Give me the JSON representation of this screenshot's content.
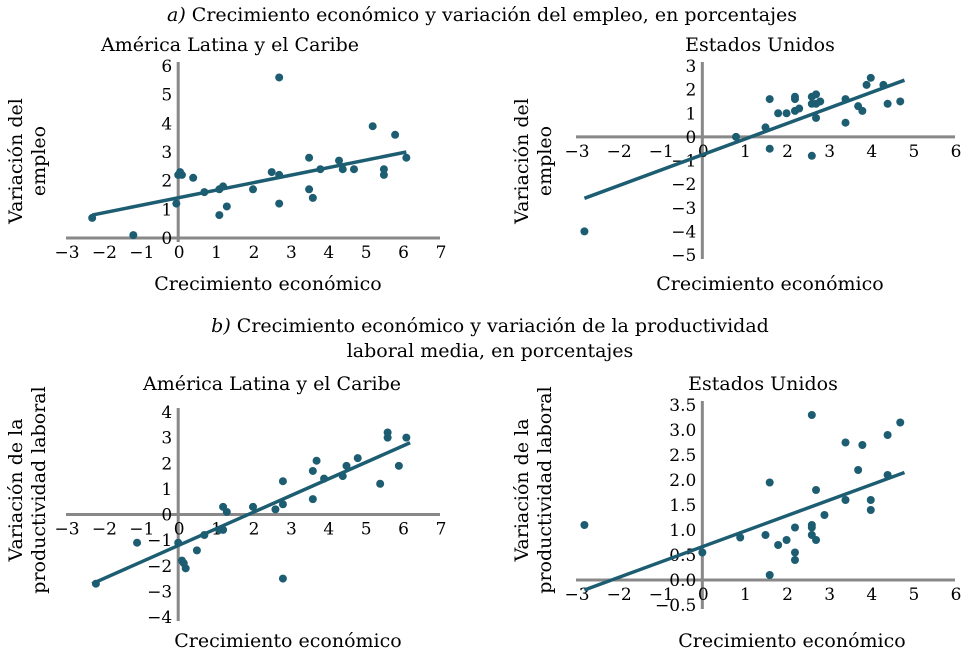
{
  "section_a": {
    "letter": "a)",
    "title": "Crecimiento económico y variación del empleo, en porcentajes"
  },
  "section_b": {
    "letter": "b)",
    "title_line1": "Crecimiento económico y variación de la productividad",
    "title_line2": "laboral media, en porcentajes"
  },
  "colors": {
    "points": "#1d5d72",
    "axes": "#888888"
  },
  "chart_data": [
    {
      "id": "a-lac",
      "type": "scatter",
      "title": "América Latina y el Caribe",
      "xlabel": "Crecimiento económico",
      "ylabel_lines": [
        "Variación del",
        "empleo"
      ],
      "xlim": [
        -3,
        7
      ],
      "ylim": [
        0,
        6
      ],
      "xticks": [
        -3,
        -2,
        -1,
        0,
        1,
        2,
        3,
        4,
        5,
        6,
        7
      ],
      "yticks": [
        0,
        1,
        2,
        3,
        4,
        5,
        6
      ],
      "trend": {
        "x1": -2.3,
        "y1": 0.8,
        "x2": 6.1,
        "y2": 3.0
      },
      "points": [
        [
          -2.3,
          0.7
        ],
        [
          -1.2,
          0.1
        ],
        [
          -0.05,
          1.2
        ],
        [
          0.0,
          2.2
        ],
        [
          0.05,
          2.3
        ],
        [
          0.1,
          2.2
        ],
        [
          0.4,
          2.1
        ],
        [
          0.7,
          1.6
        ],
        [
          1.1,
          1.7
        ],
        [
          1.2,
          1.8
        ],
        [
          1.1,
          0.8
        ],
        [
          1.3,
          1.1
        ],
        [
          2.0,
          1.7
        ],
        [
          2.5,
          2.3
        ],
        [
          2.7,
          2.2
        ],
        [
          2.7,
          1.2
        ],
        [
          2.7,
          5.6
        ],
        [
          3.5,
          2.8
        ],
        [
          3.5,
          1.7
        ],
        [
          3.6,
          1.4
        ],
        [
          3.8,
          2.4
        ],
        [
          4.3,
          2.7
        ],
        [
          4.4,
          2.4
        ],
        [
          4.7,
          2.4
        ],
        [
          5.2,
          3.9
        ],
        [
          5.5,
          2.4
        ],
        [
          5.5,
          2.2
        ],
        [
          5.8,
          3.6
        ],
        [
          6.1,
          2.8
        ]
      ]
    },
    {
      "id": "a-us",
      "type": "scatter",
      "title": "Estados Unidos",
      "xlabel": "Crecimiento económico",
      "ylabel_lines": [
        "Variación del",
        "empleo"
      ],
      "xlim": [
        -3,
        6
      ],
      "ylim": [
        -5,
        3
      ],
      "xticks": [
        -3,
        -2,
        -1,
        0,
        1,
        2,
        3,
        4,
        5,
        6
      ],
      "yticks": [
        -5,
        -4,
        -3,
        -2,
        -1,
        0,
        1,
        2,
        3
      ],
      "trend": {
        "x1": -2.8,
        "y1": -2.6,
        "x2": 4.8,
        "y2": 2.4
      },
      "points": [
        [
          -2.8,
          -4.0
        ],
        [
          0.8,
          0.0
        ],
        [
          1.5,
          0.4
        ],
        [
          1.6,
          1.6
        ],
        [
          1.6,
          -0.5
        ],
        [
          1.8,
          1.0
        ],
        [
          2.0,
          1.0
        ],
        [
          2.2,
          1.6
        ],
        [
          2.2,
          1.7
        ],
        [
          2.2,
          1.1
        ],
        [
          2.3,
          1.2
        ],
        [
          2.6,
          1.4
        ],
        [
          2.6,
          1.7
        ],
        [
          2.6,
          -0.8
        ],
        [
          2.7,
          1.8
        ],
        [
          2.7,
          1.4
        ],
        [
          2.7,
          0.8
        ],
        [
          2.8,
          1.5
        ],
        [
          3.4,
          1.6
        ],
        [
          3.4,
          0.6
        ],
        [
          3.7,
          1.3
        ],
        [
          3.8,
          1.1
        ],
        [
          3.9,
          2.2
        ],
        [
          4.0,
          2.5
        ],
        [
          4.3,
          2.2
        ],
        [
          4.4,
          1.4
        ],
        [
          4.7,
          1.5
        ]
      ]
    },
    {
      "id": "b-lac",
      "type": "scatter",
      "title": "América Latina y el Caribe",
      "xlabel": "Crecimiento económico",
      "ylabel_lines": [
        "Variación de la",
        "productividad laboral"
      ],
      "xlim": [
        -3,
        7
      ],
      "ylim": [
        -4,
        4
      ],
      "xticks": [
        -3,
        -2,
        -1,
        0,
        1,
        2,
        3,
        4,
        5,
        6,
        7
      ],
      "yticks": [
        -4,
        -3,
        -2,
        -1,
        0,
        1,
        2,
        3,
        4
      ],
      "trend": {
        "x1": -2.3,
        "y1": -2.7,
        "x2": 6.2,
        "y2": 2.8
      },
      "points": [
        [
          -2.2,
          -2.7
        ],
        [
          -1.1,
          -1.1
        ],
        [
          0.0,
          -1.1
        ],
        [
          0.1,
          -1.8
        ],
        [
          0.15,
          -1.9
        ],
        [
          0.2,
          -2.1
        ],
        [
          0.5,
          -1.4
        ],
        [
          0.7,
          -0.8
        ],
        [
          1.1,
          -0.6
        ],
        [
          1.2,
          -0.6
        ],
        [
          1.2,
          0.3
        ],
        [
          1.3,
          0.1
        ],
        [
          2.0,
          0.3
        ],
        [
          2.6,
          0.2
        ],
        [
          2.8,
          1.3
        ],
        [
          2.8,
          0.4
        ],
        [
          2.8,
          -2.5
        ],
        [
          3.6,
          0.6
        ],
        [
          3.6,
          1.7
        ],
        [
          3.7,
          2.1
        ],
        [
          3.9,
          1.4
        ],
        [
          4.4,
          1.5
        ],
        [
          4.5,
          1.9
        ],
        [
          4.8,
          2.2
        ],
        [
          5.4,
          1.2
        ],
        [
          5.6,
          3.0
        ],
        [
          5.6,
          3.2
        ],
        [
          5.9,
          1.9
        ],
        [
          6.1,
          3.0
        ]
      ]
    },
    {
      "id": "b-us",
      "type": "scatter",
      "title": "Estados Unidos",
      "xlabel": "Crecimiento económico",
      "ylabel_lines": [
        "Variación de la",
        "productividad laboral"
      ],
      "xlim": [
        -3,
        6
      ],
      "ylim": [
        -0.5,
        3.5
      ],
      "xticks": [
        -3,
        -2,
        -1,
        0,
        1,
        2,
        3,
        4,
        5,
        6
      ],
      "yticks": [
        -0.5,
        0.0,
        0.5,
        1.0,
        1.5,
        2.0,
        2.5,
        3.0,
        3.5
      ],
      "ytick_labels": [
        "−0.5",
        "0.0",
        "0.5",
        "1.0",
        "1.5",
        "2.0",
        "2.5",
        "3.0",
        "3.5"
      ],
      "trend": {
        "x1": -2.8,
        "y1": -0.2,
        "x2": 4.8,
        "y2": 2.15
      },
      "points": [
        [
          -2.8,
          1.1
        ],
        [
          0.0,
          0.55
        ],
        [
          0.9,
          0.85
        ],
        [
          1.5,
          0.9
        ],
        [
          1.6,
          0.1
        ],
        [
          1.6,
          1.95
        ],
        [
          1.8,
          0.7
        ],
        [
          2.0,
          0.8
        ],
        [
          2.2,
          0.55
        ],
        [
          2.2,
          0.4
        ],
        [
          2.2,
          1.05
        ],
        [
          2.6,
          0.9
        ],
        [
          2.6,
          1.05
        ],
        [
          2.6,
          1.1
        ],
        [
          2.6,
          3.3
        ],
        [
          2.7,
          1.8
        ],
        [
          2.7,
          0.8
        ],
        [
          2.9,
          1.3
        ],
        [
          3.4,
          1.6
        ],
        [
          3.4,
          2.75
        ],
        [
          3.7,
          2.2
        ],
        [
          3.8,
          2.7
        ],
        [
          4.0,
          1.4
        ],
        [
          4.0,
          1.6
        ],
        [
          4.4,
          2.1
        ],
        [
          4.4,
          2.9
        ],
        [
          4.7,
          3.15
        ]
      ]
    }
  ]
}
